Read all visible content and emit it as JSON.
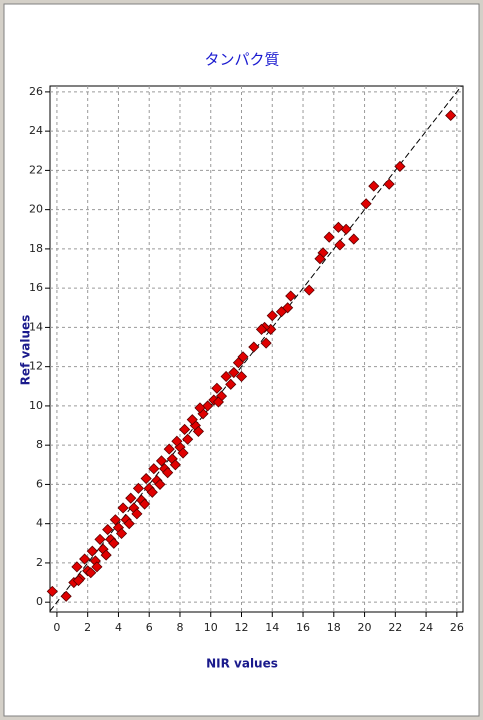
{
  "chart_data": {
    "type": "scatter",
    "title": "タンパク質",
    "x_label": "NIR values",
    "y_label": "Ref values",
    "color": "#e00000",
    "grid": true,
    "diagonal": true,
    "xlim": [
      -0.45,
      26.4
    ],
    "ylim": [
      -0.5,
      26.3
    ],
    "xticks": [
      0,
      2,
      4,
      6,
      8,
      10,
      12,
      14,
      16,
      18,
      20,
      22,
      24,
      26
    ],
    "yticks": [
      0,
      2,
      4,
      6,
      8,
      10,
      12,
      14,
      16,
      18,
      20,
      22,
      24,
      26
    ],
    "x": [
      -0.3,
      0.6,
      25.6,
      22.3,
      21.6,
      20.6,
      20.1,
      19.3,
      18.8,
      18.3,
      18.4,
      17.7,
      17.3,
      17.1,
      16.4,
      15.2,
      15.0,
      14.6,
      14.0,
      13.9,
      13.5,
      13.3,
      13.6,
      12.8,
      12.1,
      11.8,
      11.5,
      11.3,
      11.0,
      10.7,
      10.4,
      10.2,
      9.8,
      9.5,
      9.3,
      9.0,
      8.8,
      8.5,
      8.3,
      8.0,
      7.8,
      7.5,
      7.3,
      7.0,
      6.8,
      6.5,
      6.3,
      6.0,
      5.8,
      5.5,
      5.3,
      5.0,
      4.8,
      4.5,
      4.3,
      4.0,
      3.8,
      3.5,
      3.3,
      3.0,
      2.8,
      2.5,
      2.3,
      2.0,
      1.8,
      1.5,
      1.3,
      1.1,
      1.4,
      2.2,
      3.2,
      4.2,
      5.2,
      6.2,
      7.2,
      8.2,
      9.2,
      10.5,
      12.0,
      2.6,
      3.7,
      4.7,
      5.7,
      6.7,
      7.7
    ],
    "values": [
      0.55,
      0.3,
      24.8,
      22.2,
      21.3,
      21.2,
      20.3,
      18.5,
      19.0,
      19.1,
      18.2,
      18.6,
      17.8,
      17.5,
      15.9,
      15.6,
      15.0,
      14.8,
      14.6,
      13.9,
      14.0,
      13.9,
      13.2,
      13.0,
      12.5,
      12.2,
      11.7,
      11.1,
      11.5,
      10.5,
      10.9,
      10.3,
      10.0,
      9.6,
      9.9,
      9.0,
      9.3,
      8.3,
      8.8,
      7.9,
      8.2,
      7.3,
      7.8,
      6.8,
      7.2,
      6.2,
      6.8,
      5.8,
      6.3,
      5.2,
      5.8,
      4.8,
      5.3,
      4.2,
      4.8,
      3.8,
      4.2,
      3.2,
      3.7,
      2.7,
      3.2,
      2.1,
      2.6,
      1.6,
      2.2,
      1.2,
      1.8,
      1.0,
      1.1,
      1.5,
      2.4,
      3.5,
      4.5,
      5.6,
      6.6,
      7.6,
      8.7,
      10.2,
      11.5,
      1.8,
      3.0,
      4.0,
      5.0,
      6.0,
      7.0
    ]
  }
}
